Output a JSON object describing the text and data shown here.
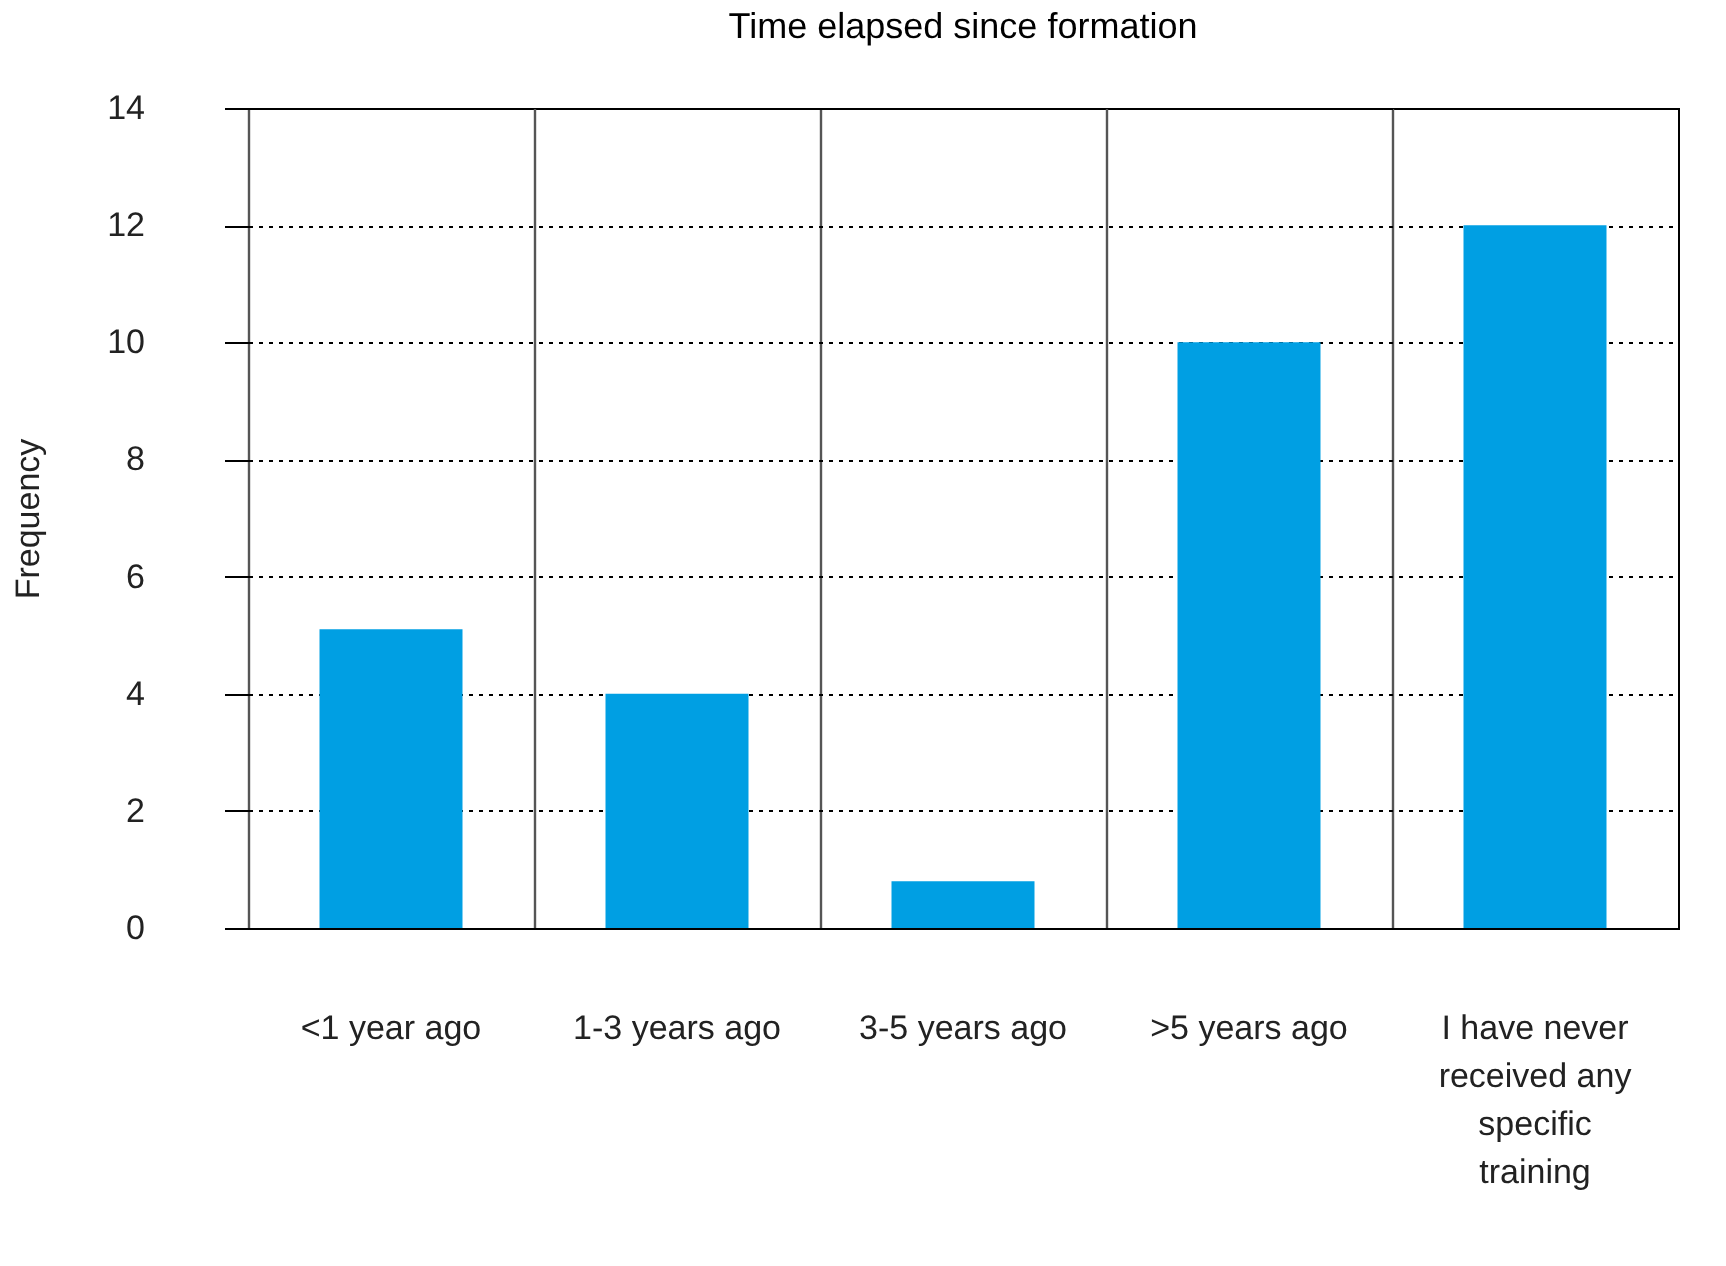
{
  "chart_data": {
    "type": "bar",
    "title": "Time elapsed since formation",
    "ylabel": "Frequency",
    "categories": [
      "<1 year ago",
      "1-3 years ago",
      "3-5 years ago",
      ">5 years ago",
      "I have never received any specific training"
    ],
    "values": [
      5.1,
      4,
      0.8,
      10,
      12
    ],
    "color": "#009fe3",
    "ylim": [
      0,
      14
    ],
    "yticks": [
      0,
      2,
      4,
      6,
      8,
      10,
      12,
      14
    ],
    "grid": "y"
  }
}
